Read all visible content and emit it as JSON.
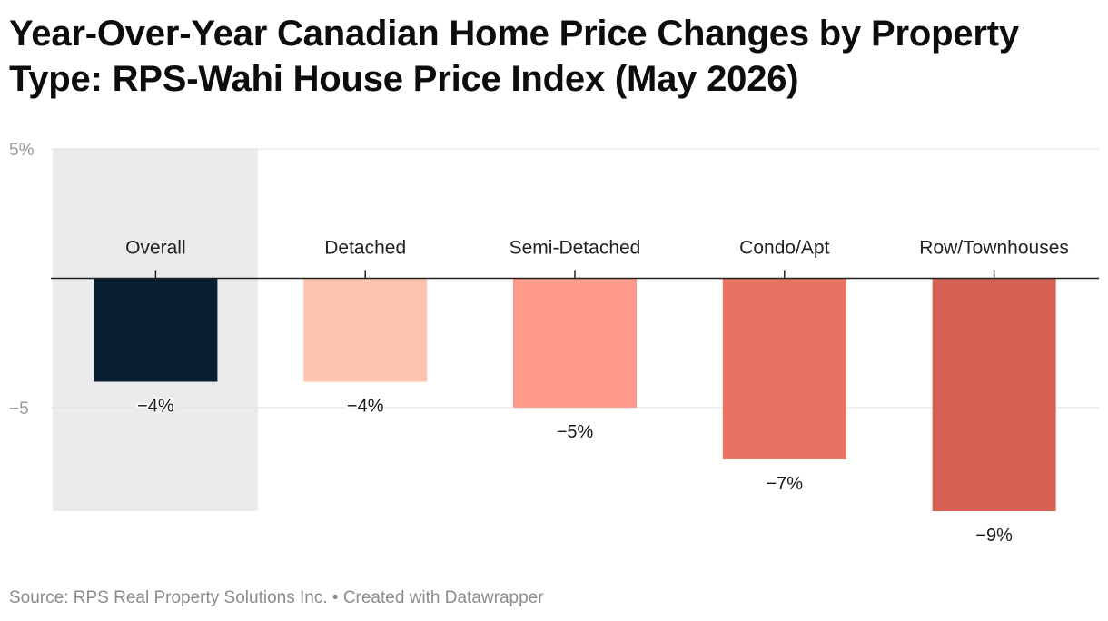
{
  "title": "Year-Over-Year Canadian Home Price Changes by Property Type: RPS-Wahi House Price Index (May 2026)",
  "source": "Source: RPS Real Property Solutions Inc. • Created with Datawrapper",
  "chart_data": {
    "type": "bar",
    "categories": [
      "Overall",
      "Detached",
      "Semi-Detached",
      "Condo/Apt",
      "Row/Townhouses"
    ],
    "values": [
      -4,
      -4,
      -5,
      -7,
      -9
    ],
    "value_labels": [
      "−4%",
      "−4%",
      "−5%",
      "−7%",
      "−9%"
    ],
    "highlighted_category": "Overall",
    "ylim": [
      -9,
      5
    ],
    "yticks": [
      5,
      -5
    ],
    "ytick_labels": [
      "5%",
      "−5"
    ],
    "grid": true,
    "colors": [
      "#0b1f33",
      "#ffc4ad",
      "#ff9988",
      "#e97262",
      "#d66153"
    ],
    "highlight_band_color": "#ebebeb",
    "xlabel": "",
    "ylabel": ""
  }
}
